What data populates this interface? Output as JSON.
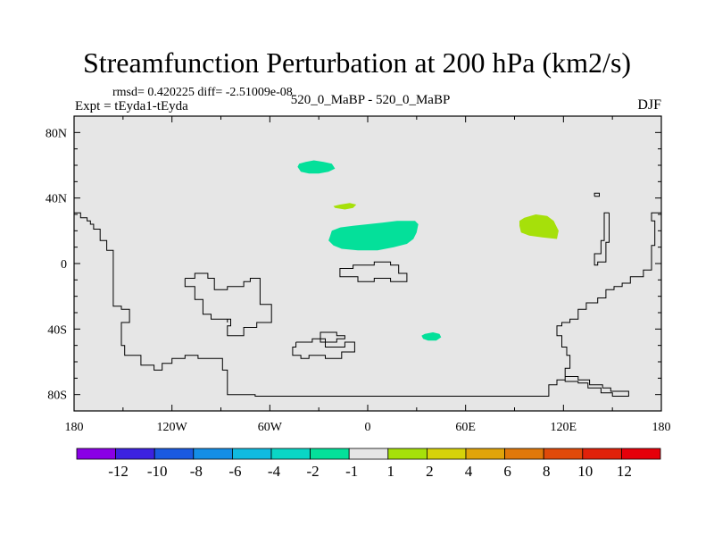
{
  "header": {
    "title": "Streamfunction Perturbation at 200 hPa (km2/s)",
    "stats": "rmsd= 0.420225 diff= -2.51009e-08",
    "experiment": "Expt = tEyda1-tEyda",
    "cases": "520_0_MaBP - 520_0_MaBP",
    "season": "DJF"
  },
  "chart_data": {
    "type": "contour-map",
    "title": "Streamfunction Perturbation at 200 hPa (km2/s)",
    "units": "km2/s",
    "xlim": [
      -180,
      180
    ],
    "ylim": [
      -90,
      90
    ],
    "x_ticks": [
      {
        "value": -180,
        "label": "180"
      },
      {
        "value": -120,
        "label": "120W"
      },
      {
        "value": -60,
        "label": "60W"
      },
      {
        "value": 0,
        "label": "0"
      },
      {
        "value": 60,
        "label": "60E"
      },
      {
        "value": 120,
        "label": "120E"
      },
      {
        "value": 180,
        "label": "180"
      }
    ],
    "y_ticks": [
      {
        "value": 80,
        "label": "80N"
      },
      {
        "value": 40,
        "label": "40N"
      },
      {
        "value": 0,
        "label": "0"
      },
      {
        "value": -40,
        "label": "40S"
      },
      {
        "value": -80,
        "label": "80S"
      }
    ],
    "background_color": "#e6e6e6",
    "colorbar": {
      "levels": [
        "-12",
        "-10",
        "-8",
        "-6",
        "-4",
        "-2",
        "-1",
        "1",
        "2",
        "4",
        "6",
        "8",
        "10",
        "12"
      ],
      "colors": [
        "#8a00e6",
        "#3c22e0",
        "#1a5ae0",
        "#148ee6",
        "#10bbe0",
        "#0ad6c6",
        "#04e09a",
        "#e6e6e6",
        "#a6e00a",
        "#d6d20a",
        "#e0a40a",
        "#e0780a",
        "#e04a0a",
        "#e0220a",
        "#e6000a"
      ]
    },
    "anomalies": [
      {
        "name": "north-atlantic",
        "level": "-2 to -1",
        "color": "#04e09a",
        "polygon": [
          [
            -43,
            59
          ],
          [
            -42,
            61
          ],
          [
            -38,
            62
          ],
          [
            -33,
            63
          ],
          [
            -27,
            62
          ],
          [
            -22,
            61
          ],
          [
            -20,
            58
          ],
          [
            -24,
            56
          ],
          [
            -30,
            55
          ],
          [
            -36,
            55
          ],
          [
            -41,
            56
          ]
        ]
      },
      {
        "name": "mediterranean",
        "level": "1 to 2",
        "color": "#a6e00a",
        "polygon": [
          [
            -21,
            35
          ],
          [
            -17,
            36
          ],
          [
            -11,
            37
          ],
          [
            -7,
            36
          ],
          [
            -9,
            34
          ],
          [
            -14,
            33
          ],
          [
            -20,
            34
          ]
        ]
      },
      {
        "name": "african-tropics",
        "level": "-2 to -1",
        "color": "#04e09a",
        "polygon": [
          [
            -23,
            17
          ],
          [
            -22,
            20
          ],
          [
            -17,
            22
          ],
          [
            -9,
            23
          ],
          [
            0,
            24
          ],
          [
            9,
            25
          ],
          [
            18,
            26
          ],
          [
            29,
            26
          ],
          [
            31,
            24
          ],
          [
            30,
            19
          ],
          [
            28,
            15
          ],
          [
            24,
            12
          ],
          [
            16,
            10
          ],
          [
            6,
            8
          ],
          [
            -6,
            8
          ],
          [
            -16,
            9
          ],
          [
            -21,
            11
          ],
          [
            -24,
            14
          ]
        ]
      },
      {
        "name": "east-asia",
        "level": "1 to 2",
        "color": "#a6e00a",
        "polygon": [
          [
            93,
            23
          ],
          [
            93,
            26
          ],
          [
            96,
            28
          ],
          [
            103,
            30
          ],
          [
            110,
            29
          ],
          [
            114,
            26
          ],
          [
            117,
            20
          ],
          [
            116,
            15
          ],
          [
            107,
            16
          ],
          [
            99,
            17
          ],
          [
            94,
            19
          ]
        ]
      },
      {
        "name": "south-indian-ocean",
        "level": "-2 to -1",
        "color": "#04e09a",
        "polygon": [
          [
            33,
            -44
          ],
          [
            35,
            -43
          ],
          [
            40,
            -42
          ],
          [
            44,
            -43
          ],
          [
            45,
            -45
          ],
          [
            42,
            -47
          ],
          [
            37,
            -47
          ],
          [
            34,
            -46
          ]
        ]
      }
    ],
    "coastlines": [
      [
        [
          -180,
          31
        ],
        [
          -176,
          31
        ],
        [
          -176,
          28
        ],
        [
          -172,
          28
        ],
        [
          -172,
          26
        ],
        [
          -170,
          26
        ],
        [
          -170,
          24
        ],
        [
          -168,
          24
        ],
        [
          -168,
          21
        ],
        [
          -164,
          21
        ],
        [
          -164,
          14
        ],
        [
          -160,
          14
        ],
        [
          -160,
          8
        ],
        [
          -156,
          8
        ],
        [
          -156,
          -26
        ],
        [
          -151,
          -26
        ],
        [
          -151,
          -28
        ],
        [
          -146,
          -28
        ],
        [
          -146,
          -36
        ],
        [
          -151,
          -36
        ],
        [
          -151,
          -50
        ],
        [
          -149,
          -50
        ],
        [
          -149,
          -56
        ],
        [
          -139,
          -56
        ],
        [
          -139,
          -62
        ],
        [
          -131,
          -62
        ],
        [
          -131,
          -65
        ],
        [
          -126,
          -65
        ],
        [
          -126,
          -61
        ],
        [
          -120,
          -61
        ],
        [
          -120,
          -58
        ],
        [
          -112,
          -58
        ],
        [
          -112,
          -56
        ],
        [
          -104,
          -56
        ],
        [
          -104,
          -58
        ],
        [
          -89,
          -58
        ],
        [
          -89,
          -65
        ],
        [
          -86,
          -65
        ],
        [
          -86,
          -80
        ],
        [
          -69,
          -80
        ],
        [
          -69,
          -81
        ],
        [
          9,
          -81
        ],
        [
          20,
          -81
        ],
        [
          104,
          -81
        ],
        [
          111,
          -81
        ],
        [
          111,
          -74
        ],
        [
          116,
          -74
        ],
        [
          116,
          -71
        ],
        [
          121,
          -71
        ],
        [
          121,
          -69
        ],
        [
          129,
          -69
        ],
        [
          129,
          -71
        ],
        [
          136,
          -71
        ],
        [
          136,
          -74
        ],
        [
          144,
          -74
        ],
        [
          144,
          -76
        ],
        [
          149,
          -76
        ],
        [
          149,
          -78
        ],
        [
          160,
          -78
        ],
        [
          160,
          -81
        ],
        [
          150,
          -81
        ],
        [
          150,
          -79
        ],
        [
          143,
          -79
        ],
        [
          143,
          -76
        ],
        [
          135,
          -76
        ],
        [
          135,
          -73
        ],
        [
          129,
          -73
        ],
        [
          129,
          -72
        ],
        [
          121,
          -72
        ],
        [
          121,
          -64
        ],
        [
          124,
          -64
        ],
        [
          124,
          -56
        ],
        [
          122,
          -56
        ],
        [
          122,
          -51
        ],
        [
          119,
          -51
        ],
        [
          119,
          -44
        ],
        [
          116,
          -44
        ],
        [
          116,
          -38
        ],
        [
          119,
          -38
        ],
        [
          119,
          -36
        ],
        [
          124,
          -36
        ],
        [
          124,
          -34
        ],
        [
          129,
          -34
        ],
        [
          129,
          -28
        ],
        [
          134,
          -28
        ],
        [
          134,
          -24
        ],
        [
          141,
          -24
        ],
        [
          141,
          -21
        ],
        [
          146,
          -21
        ],
        [
          146,
          -16
        ],
        [
          151,
          -16
        ],
        [
          151,
          -14
        ],
        [
          156,
          -14
        ],
        [
          156,
          -12
        ],
        [
          161,
          -12
        ],
        [
          161,
          -8
        ],
        [
          169,
          -8
        ],
        [
          169,
          -4
        ],
        [
          174,
          -4
        ],
        [
          174,
          11
        ],
        [
          176,
          11
        ],
        [
          176,
          26
        ],
        [
          174,
          26
        ],
        [
          174,
          31
        ],
        [
          180,
          31
        ]
      ],
      [
        [
          -112,
          -9
        ],
        [
          -112,
          -14
        ],
        [
          -106,
          -14
        ],
        [
          -106,
          -22
        ],
        [
          -101,
          -22
        ],
        [
          -101,
          -31
        ],
        [
          -96,
          -31
        ],
        [
          -96,
          -34
        ],
        [
          -86,
          -34
        ],
        [
          -86,
          -36
        ],
        [
          -86,
          -34
        ],
        [
          -84,
          -34
        ],
        [
          -84,
          -38
        ],
        [
          -86,
          -38
        ],
        [
          -86,
          -44
        ],
        [
          -76,
          -44
        ],
        [
          -76,
          -39
        ],
        [
          -68,
          -39
        ],
        [
          -68,
          -36
        ],
        [
          -59,
          -36
        ],
        [
          -59,
          -25
        ],
        [
          -66,
          -25
        ],
        [
          -66,
          -9
        ],
        [
          -72,
          -9
        ],
        [
          -72,
          -11
        ],
        [
          -76,
          -11
        ],
        [
          -76,
          -14
        ],
        [
          -86,
          -14
        ],
        [
          -86,
          -16
        ],
        [
          -94,
          -16
        ],
        [
          -94,
          -9
        ],
        [
          -98,
          -9
        ],
        [
          -98,
          -6
        ],
        [
          -106,
          -6
        ],
        [
          -106,
          -9
        ],
        [
          -112,
          -9
        ]
      ],
      [
        [
          -17,
          -6
        ],
        [
          -17,
          -8
        ],
        [
          -6,
          -8
        ],
        [
          -6,
          -11
        ],
        [
          4,
          -11
        ],
        [
          4,
          -9
        ],
        [
          14,
          -9
        ],
        [
          14,
          -11
        ],
        [
          24,
          -11
        ],
        [
          24,
          -6
        ],
        [
          19,
          -6
        ],
        [
          19,
          -1
        ],
        [
          14,
          -1
        ],
        [
          14,
          1
        ],
        [
          4,
          1
        ],
        [
          4,
          -1
        ],
        [
          -9,
          -1
        ],
        [
          -9,
          -3
        ],
        [
          -17,
          -3
        ],
        [
          -17,
          -6
        ]
      ],
      [
        [
          -44,
          -48
        ],
        [
          -44,
          -51
        ],
        [
          -46,
          -51
        ],
        [
          -46,
          -56
        ],
        [
          -41,
          -56
        ],
        [
          -41,
          -58
        ],
        [
          -36,
          -58
        ],
        [
          -36,
          -56
        ],
        [
          -26,
          -56
        ],
        [
          -26,
          -58
        ],
        [
          -16,
          -58
        ],
        [
          -16,
          -54
        ],
        [
          -8,
          -54
        ],
        [
          -8,
          -48
        ],
        [
          -14,
          -48
        ],
        [
          -14,
          -51
        ],
        [
          -26,
          -51
        ],
        [
          -26,
          -46
        ],
        [
          -34,
          -46
        ],
        [
          -34,
          -48
        ],
        [
          -44,
          -48
        ]
      ],
      [
        [
          -29,
          -44
        ],
        [
          -29,
          -48
        ],
        [
          -19,
          -48
        ],
        [
          -19,
          -46
        ],
        [
          -14,
          -46
        ],
        [
          -14,
          -44
        ],
        [
          -19,
          -44
        ],
        [
          -19,
          -42
        ],
        [
          -29,
          -42
        ],
        [
          -29,
          -44
        ]
      ],
      [
        [
          139,
          41
        ],
        [
          139,
          43
        ],
        [
          142,
          43
        ],
        [
          142,
          41
        ],
        [
          139,
          41
        ]
      ],
      [
        [
          148,
          31
        ],
        [
          148,
          13
        ],
        [
          146,
          13
        ],
        [
          146,
          1
        ],
        [
          141,
          1
        ],
        [
          141,
          -1
        ],
        [
          139,
          -1
        ],
        [
          139,
          6
        ],
        [
          143,
          6
        ],
        [
          143,
          14
        ],
        [
          145,
          14
        ],
        [
          145,
          31
        ],
        [
          148,
          31
        ]
      ]
    ]
  }
}
